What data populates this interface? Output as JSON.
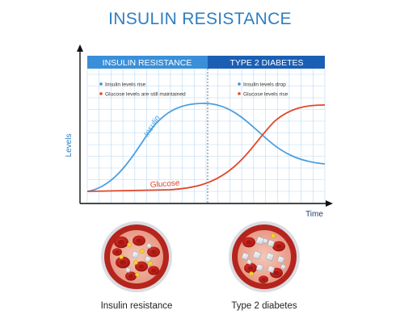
{
  "title": "INSULIN RESISTANCE",
  "phase_bar": {
    "left_label": "INSULIN RESISTANCE",
    "right_label": "TYPE 2 DIABETES"
  },
  "legend": {
    "left": [
      {
        "text": "Insulin levels rise",
        "color": "#3b8fd8"
      },
      {
        "text": "Glucose levels are still maintained",
        "color": "#e24a2a"
      }
    ],
    "right": [
      {
        "text": "Insulin levels drop",
        "color": "#3b8fd8"
      },
      {
        "text": "Glucose levels rise",
        "color": "#e24a2a"
      }
    ]
  },
  "axes": {
    "x_label": "Time",
    "y_label": "Levels"
  },
  "curves": {
    "insulin_label": "Insulin",
    "glucose_label": "Glucose",
    "insulin_color": "#4b9fe0",
    "glucose_color": "#e0472a"
  },
  "colors": {
    "title": "#2f7ec0",
    "bar_left": "#3a8fd9",
    "bar_right": "#1b5fb4",
    "grid": "#b7d8f2",
    "blood_vessel": "#b5241d"
  },
  "illustrations": [
    {
      "caption": "Insulin resistance"
    },
    {
      "caption": "Type 2 diabetes"
    }
  ]
}
